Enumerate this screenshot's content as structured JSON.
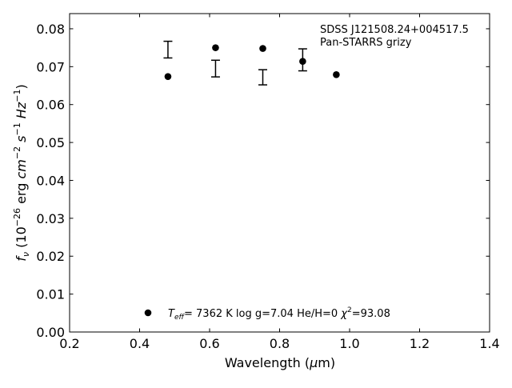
{
  "chart_data": {
    "type": "scatter",
    "title": "",
    "annotation": {
      "object": "SDSS J121508.24+004517.5",
      "survey": "Pan-STARRS grizy"
    },
    "xlabel": {
      "prefix": "Wavelength (",
      "symbol": "μ",
      "suffix": "m)"
    },
    "ylabel": {
      "prefix": "f",
      "sub": "ν",
      "mid1": " (10",
      "sup1": "−26",
      "mid2": " erg ",
      "cm": "cm",
      "sup2": "−2",
      "s": " s",
      "sup3": "−1",
      "hz": " Hz",
      "sup4": "−1",
      "close": ")"
    },
    "xlim": [
      0.2,
      1.4
    ],
    "ylim": [
      0.0,
      0.084
    ],
    "xticks": [
      0.2,
      0.4,
      0.6,
      0.8,
      1.0,
      1.2,
      1.4
    ],
    "xtick_labels": [
      "0.2",
      "0.4",
      "0.6",
      "0.8",
      "1.0",
      "1.2",
      "1.4"
    ],
    "yticks": [
      0.0,
      0.01,
      0.02,
      0.03,
      0.04,
      0.05,
      0.06,
      0.07,
      0.08
    ],
    "ytick_labels": [
      "0.00",
      "0.01",
      "0.02",
      "0.03",
      "0.04",
      "0.05",
      "0.06",
      "0.07",
      "0.08"
    ],
    "series": [
      {
        "marker": "errorbar",
        "points": [
          {
            "x": 0.481,
            "y": 0.0745,
            "err": 0.0022
          },
          {
            "x": 0.617,
            "y": 0.0695,
            "err": 0.0022
          },
          {
            "x": 0.752,
            "y": 0.0672,
            "err": 0.002
          },
          {
            "x": 0.866,
            "y": 0.0718,
            "err": 0.0029
          }
        ]
      },
      {
        "marker": "circle",
        "points": [
          {
            "x": 0.481,
            "y": 0.0674
          },
          {
            "x": 0.617,
            "y": 0.075
          },
          {
            "x": 0.752,
            "y": 0.0748
          },
          {
            "x": 0.866,
            "y": 0.0714
          },
          {
            "x": 0.962,
            "y": 0.0679
          }
        ]
      }
    ],
    "legend": {
      "placement": "bottom-center",
      "teff_symbol": "T",
      "teff_sub": "eff",
      "teff_value": "=  7362 K  log g=7.04  He/H=0  ",
      "chi_symbol": "χ",
      "chi_sup": "2",
      "chi_value": "=93.08"
    },
    "grid": false,
    "colors": {
      "marker": "#000000",
      "axes": "#000000",
      "background": "#ffffff"
    }
  }
}
